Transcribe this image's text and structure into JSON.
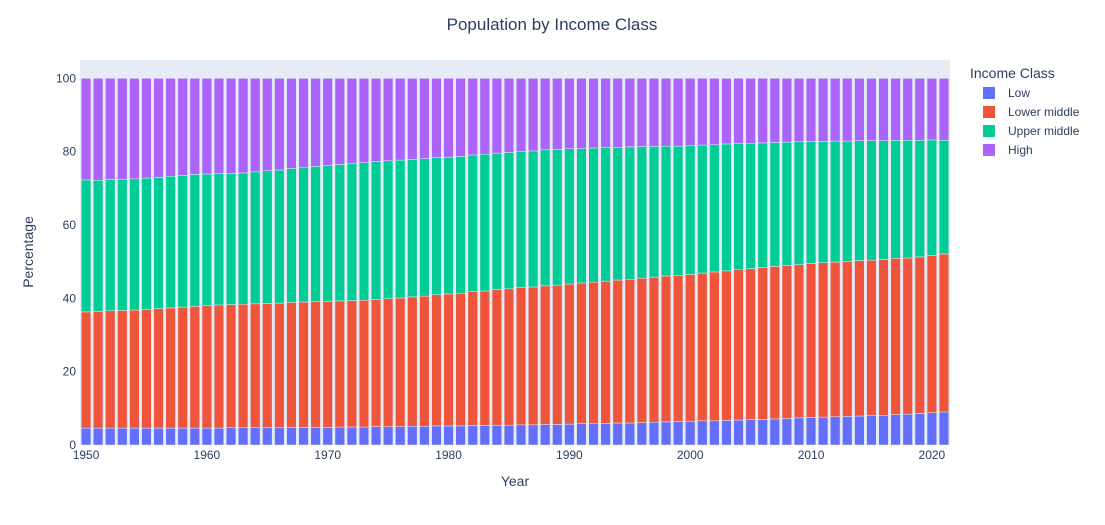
{
  "chart_data": {
    "type": "bar",
    "stacked": true,
    "title": "Population by Income Class",
    "xlabel": "Year",
    "ylabel": "Percentage",
    "xlim": [
      1949.5,
      2021.5
    ],
    "ylim": [
      0,
      105
    ],
    "xticks": [
      1950,
      1960,
      1970,
      1980,
      1990,
      2000,
      2010,
      2020
    ],
    "yticks": [
      0,
      20,
      40,
      60,
      80,
      100
    ],
    "grid": false,
    "legend": {
      "title": "Income Class",
      "position": "right"
    },
    "background_color": "#e5ecf6",
    "x": [
      1950,
      1951,
      1952,
      1953,
      1954,
      1955,
      1956,
      1957,
      1958,
      1959,
      1960,
      1961,
      1962,
      1963,
      1964,
      1965,
      1966,
      1967,
      1968,
      1969,
      1970,
      1971,
      1972,
      1973,
      1974,
      1975,
      1976,
      1977,
      1978,
      1979,
      1980,
      1981,
      1982,
      1983,
      1984,
      1985,
      1986,
      1987,
      1988,
      1989,
      1990,
      1991,
      1992,
      1993,
      1994,
      1995,
      1996,
      1997,
      1998,
      1999,
      2000,
      2001,
      2002,
      2003,
      2004,
      2005,
      2006,
      2007,
      2008,
      2009,
      2010,
      2011,
      2012,
      2013,
      2014,
      2015,
      2016,
      2017,
      2018,
      2019,
      2020,
      2021
    ],
    "series": [
      {
        "name": "Low",
        "color": "#636efa",
        "values": [
          4.6,
          4.6,
          4.6,
          4.6,
          4.6,
          4.6,
          4.6,
          4.6,
          4.6,
          4.6,
          4.6,
          4.6,
          4.7,
          4.7,
          4.7,
          4.7,
          4.7,
          4.8,
          4.8,
          4.8,
          4.8,
          4.9,
          4.9,
          4.9,
          5.0,
          5.0,
          5.0,
          5.1,
          5.1,
          5.2,
          5.2,
          5.2,
          5.3,
          5.3,
          5.4,
          5.4,
          5.5,
          5.5,
          5.6,
          5.6,
          5.7,
          5.8,
          5.8,
          5.9,
          6.0,
          6.0,
          6.1,
          6.2,
          6.3,
          6.4,
          6.5,
          6.6,
          6.6,
          6.7,
          6.8,
          6.9,
          7.0,
          7.1,
          7.2,
          7.4,
          7.5,
          7.6,
          7.7,
          7.8,
          7.9,
          8.0,
          8.1,
          8.3,
          8.4,
          8.6,
          8.8,
          9.0
        ]
      },
      {
        "name": "Lower middle",
        "color": "#ef553b",
        "values": [
          31.7,
          31.8,
          32.0,
          32.1,
          32.2,
          32.4,
          32.6,
          32.8,
          33.0,
          33.2,
          33.4,
          33.6,
          33.6,
          33.7,
          33.8,
          33.9,
          34.0,
          34.1,
          34.2,
          34.3,
          34.3,
          34.4,
          34.5,
          34.6,
          34.7,
          34.9,
          35.1,
          35.3,
          35.5,
          35.8,
          36.0,
          36.2,
          36.5,
          36.7,
          37.0,
          37.2,
          37.4,
          37.6,
          37.8,
          38.0,
          38.2,
          38.4,
          38.6,
          38.8,
          39.0,
          39.2,
          39.4,
          39.6,
          39.8,
          39.9,
          40.0,
          40.3,
          40.6,
          40.8,
          41.0,
          41.2,
          41.4,
          41.6,
          41.8,
          41.8,
          42.0,
          42.1,
          42.2,
          42.3,
          42.4,
          42.4,
          42.5,
          42.6,
          42.6,
          42.7,
          42.9,
          43.1
        ]
      },
      {
        "name": "Upper middle",
        "color": "#00cc96",
        "values": [
          36.0,
          35.8,
          35.8,
          35.8,
          35.8,
          35.8,
          35.8,
          35.9,
          35.9,
          36.0,
          35.9,
          35.8,
          35.7,
          35.8,
          36.0,
          36.2,
          36.3,
          36.5,
          36.6,
          36.9,
          37.1,
          37.2,
          37.3,
          37.5,
          37.6,
          37.6,
          37.6,
          37.5,
          37.5,
          37.4,
          37.3,
          37.3,
          37.3,
          37.3,
          37.2,
          37.2,
          37.2,
          37.1,
          37.1,
          37.0,
          36.9,
          36.6,
          36.6,
          36.4,
          36.2,
          36.1,
          35.9,
          35.6,
          35.4,
          35.2,
          35.1,
          34.9,
          34.7,
          34.6,
          34.4,
          34.2,
          34.0,
          33.8,
          33.6,
          33.5,
          33.3,
          33.1,
          33.0,
          32.8,
          32.7,
          32.6,
          32.4,
          32.2,
          32.1,
          31.8,
          31.5,
          31.0
        ]
      },
      {
        "name": "High",
        "color": "#ab63fa",
        "values": [
          27.7,
          27.8,
          27.6,
          27.5,
          27.4,
          27.2,
          27.0,
          26.7,
          26.5,
          26.2,
          26.1,
          26.0,
          26.0,
          25.8,
          25.5,
          25.2,
          25.0,
          24.6,
          24.4,
          24.0,
          23.8,
          23.5,
          23.3,
          23.0,
          22.7,
          22.5,
          22.3,
          22.1,
          21.9,
          21.6,
          21.5,
          21.3,
          20.9,
          20.7,
          20.4,
          20.2,
          19.9,
          19.8,
          19.5,
          19.4,
          19.2,
          19.2,
          19.0,
          18.9,
          18.8,
          18.7,
          18.6,
          18.6,
          18.5,
          18.5,
          18.4,
          18.2,
          18.1,
          17.9,
          17.8,
          17.7,
          17.6,
          17.5,
          17.4,
          17.3,
          17.2,
          17.2,
          17.1,
          17.1,
          17.0,
          17.0,
          17.0,
          16.9,
          16.9,
          16.9,
          16.8,
          16.9
        ]
      }
    ]
  }
}
